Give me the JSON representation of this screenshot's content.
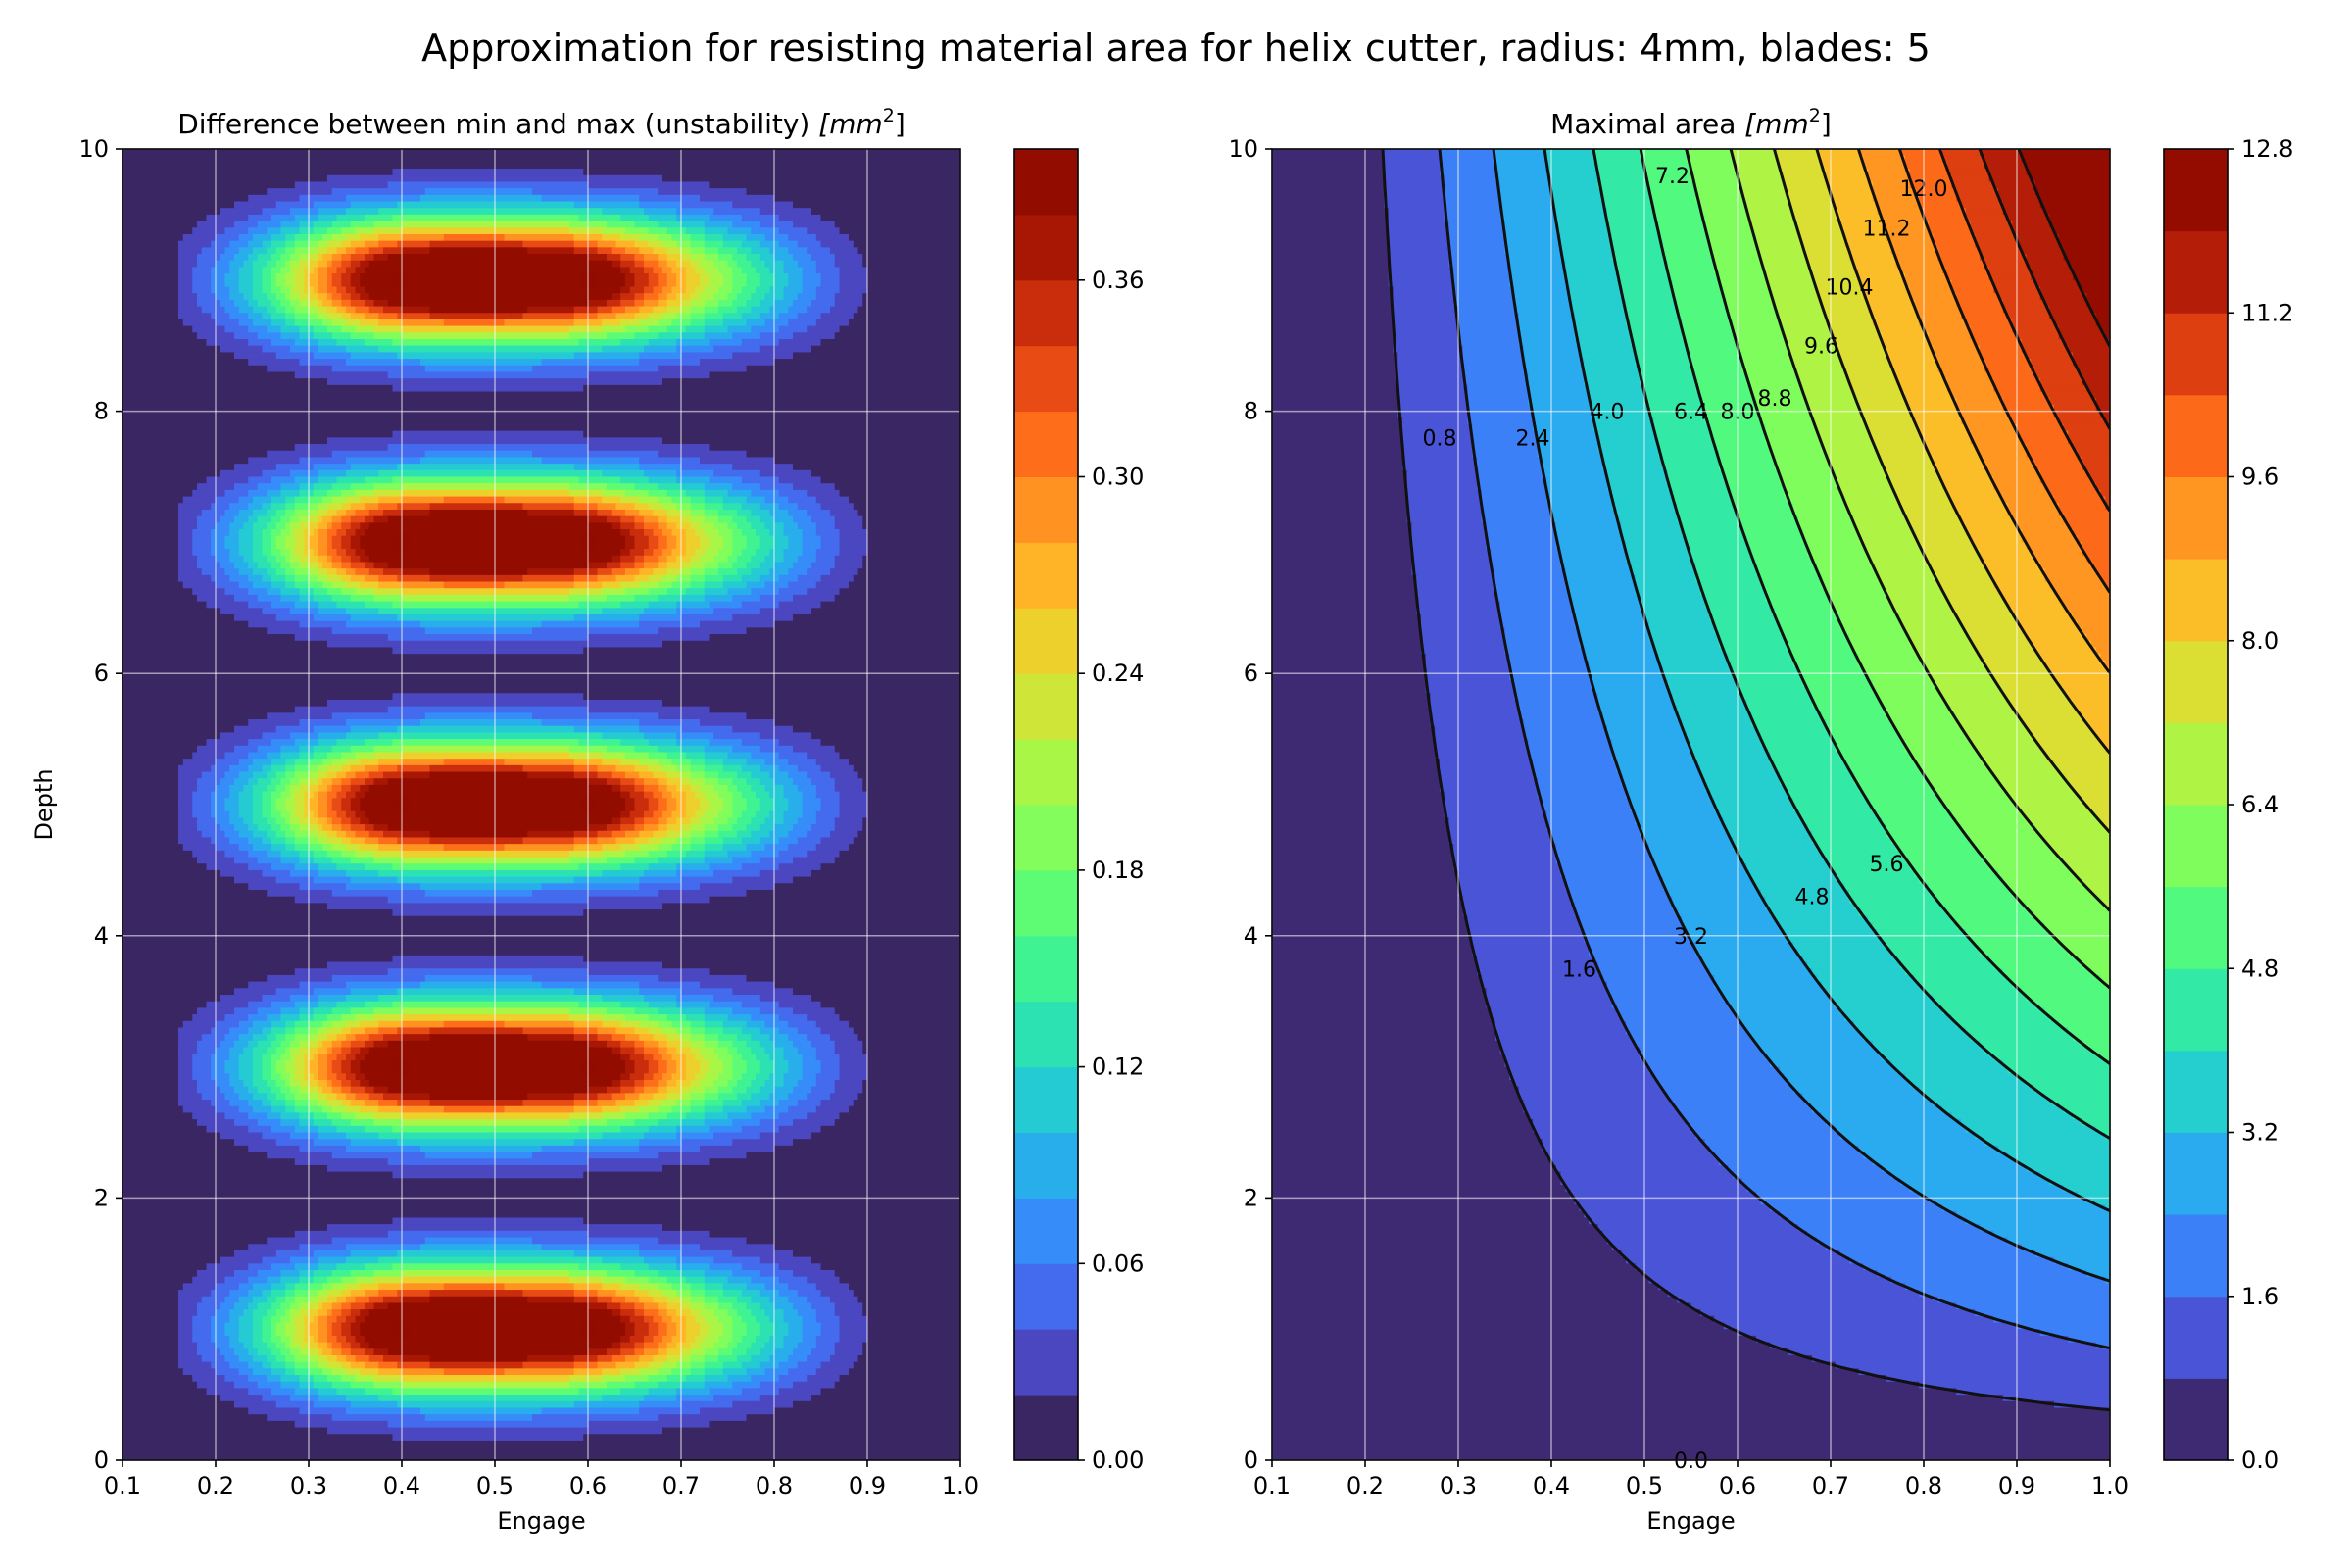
{
  "figure": {
    "title": "Approximation for resisting material area for helix cutter, radius: 4mm, blades: 5"
  },
  "chart_data": [
    {
      "type": "heatmap",
      "title_text": "Difference between min and max (unstability) ",
      "title_unit": "mm",
      "title_unit_sup": "2",
      "xlabel": "Engage",
      "ylabel": "Depth",
      "xlim": [
        0.1,
        1.0
      ],
      "ylim": [
        0,
        10
      ],
      "xticks": [
        "0.1",
        "0.2",
        "0.3",
        "0.4",
        "0.5",
        "0.6",
        "0.7",
        "0.8",
        "0.9",
        "1.0"
      ],
      "yticks": [
        "0",
        "2",
        "4",
        "6",
        "8",
        "10"
      ],
      "grid": true,
      "colorbar": {
        "range": [
          0.0,
          0.4
        ],
        "levels": 20,
        "ticks": [
          "0.00",
          "0.06",
          "0.12",
          "0.18",
          "0.24",
          "0.30",
          "0.36"
        ]
      },
      "peaks": [
        {
          "engage": 0.4,
          "depth": 1,
          "value": 0.39
        },
        {
          "engage": 0.6,
          "depth": 1,
          "value": 0.37
        },
        {
          "engage": 0.4,
          "depth": 3,
          "value": 0.39
        },
        {
          "engage": 0.6,
          "depth": 3,
          "value": 0.37
        },
        {
          "engage": 0.4,
          "depth": 5,
          "value": 0.39
        },
        {
          "engage": 0.6,
          "depth": 5,
          "value": 0.37
        },
        {
          "engage": 0.4,
          "depth": 7,
          "value": 0.39
        },
        {
          "engage": 0.6,
          "depth": 7,
          "value": 0.37
        },
        {
          "engage": 0.4,
          "depth": 9,
          "value": 0.39
        },
        {
          "engage": 0.6,
          "depth": 9,
          "value": 0.37
        }
      ]
    },
    {
      "type": "heatmap",
      "title_text": "Maximal area ",
      "title_unit": "mm",
      "title_unit_sup": "2",
      "xlabel": "Engage",
      "ylabel": "",
      "xlim": [
        0.1,
        1.0
      ],
      "ylim": [
        0,
        10
      ],
      "xticks": [
        "0.1",
        "0.2",
        "0.3",
        "0.4",
        "0.5",
        "0.6",
        "0.7",
        "0.8",
        "0.9",
        "1.0"
      ],
      "yticks": [
        "0",
        "2",
        "4",
        "6",
        "8",
        "10"
      ],
      "grid": true,
      "colorbar": {
        "range": [
          0.0,
          12.8
        ],
        "levels": 16,
        "ticks": [
          "0.0",
          "1.6",
          "3.2",
          "4.8",
          "6.4",
          "8.0",
          "9.6",
          "11.2",
          "12.8"
        ]
      },
      "contour_levels": [
        0.8,
        1.6,
        2.4,
        3.2,
        4.0,
        4.8,
        5.6,
        6.4,
        7.2,
        8.0,
        8.8,
        9.6,
        10.4,
        11.2,
        12.0
      ],
      "contour_labels": [
        {
          "text": "0.0",
          "engage": 0.55,
          "depth": 0.0
        },
        {
          "text": "0.8",
          "engage": 0.28,
          "depth": 7.8
        },
        {
          "text": "1.6",
          "engage": 0.43,
          "depth": 3.75
        },
        {
          "text": "2.4",
          "engage": 0.38,
          "depth": 7.8
        },
        {
          "text": "3.2",
          "engage": 0.55,
          "depth": 4.0
        },
        {
          "text": "4.0",
          "engage": 0.46,
          "depth": 8.0
        },
        {
          "text": "4.8",
          "engage": 0.68,
          "depth": 4.3
        },
        {
          "text": "5.6",
          "engage": 0.76,
          "depth": 4.55
        },
        {
          "text": "6.4",
          "engage": 0.55,
          "depth": 8.0
        },
        {
          "text": "7.2",
          "engage": 0.53,
          "depth": 9.8
        },
        {
          "text": "8.0",
          "engage": 0.6,
          "depth": 8.0
        },
        {
          "text": "8.8",
          "engage": 0.64,
          "depth": 8.1
        },
        {
          "text": "9.6",
          "engage": 0.69,
          "depth": 8.5
        },
        {
          "text": "10.4",
          "engage": 0.72,
          "depth": 8.95
        },
        {
          "text": "11.2",
          "engage": 0.76,
          "depth": 9.4
        },
        {
          "text": "12.0",
          "engage": 0.8,
          "depth": 9.7
        }
      ]
    }
  ]
}
